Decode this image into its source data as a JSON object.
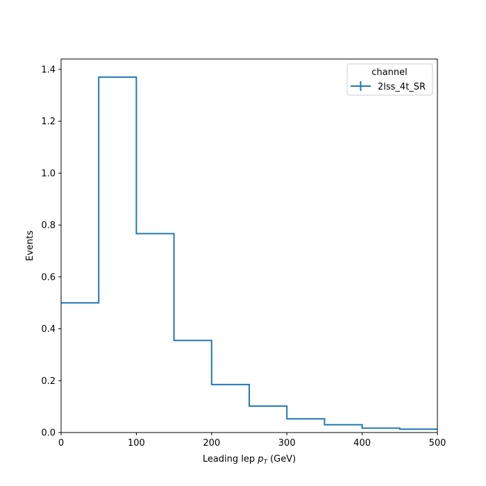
{
  "chart_data": {
    "type": "histogram",
    "xlabel": "Leading lep",
    "xlabel_symbol": "p",
    "xlabel_subscript": "T",
    "xlabel_unit": "(GeV)",
    "ylabel": "Events",
    "xlim": [
      0,
      500
    ],
    "ylim": [
      0,
      1.44
    ],
    "x_ticks": [
      0,
      100,
      200,
      300,
      400,
      500
    ],
    "y_ticks": [
      0.0,
      0.2,
      0.4,
      0.6,
      0.8,
      1.0,
      1.2,
      1.4
    ],
    "x_tick_labels": [
      "0",
      "100",
      "200",
      "300",
      "400",
      "500"
    ],
    "y_tick_labels": [
      "0.0",
      "0.2",
      "0.4",
      "0.6",
      "0.8",
      "1.0",
      "1.2",
      "1.4"
    ],
    "bin_edges": [
      0,
      50,
      100,
      150,
      200,
      250,
      300,
      350,
      400,
      450,
      500
    ],
    "series": [
      {
        "name": "2lss_4t_SR",
        "values": [
          0.5,
          1.37,
          0.767,
          0.355,
          0.185,
          0.102,
          0.053,
          0.03,
          0.017,
          0.013
        ],
        "color": "#1f77b4"
      }
    ],
    "legend": {
      "title": "channel",
      "placement": "top-right"
    },
    "grid": false
  }
}
